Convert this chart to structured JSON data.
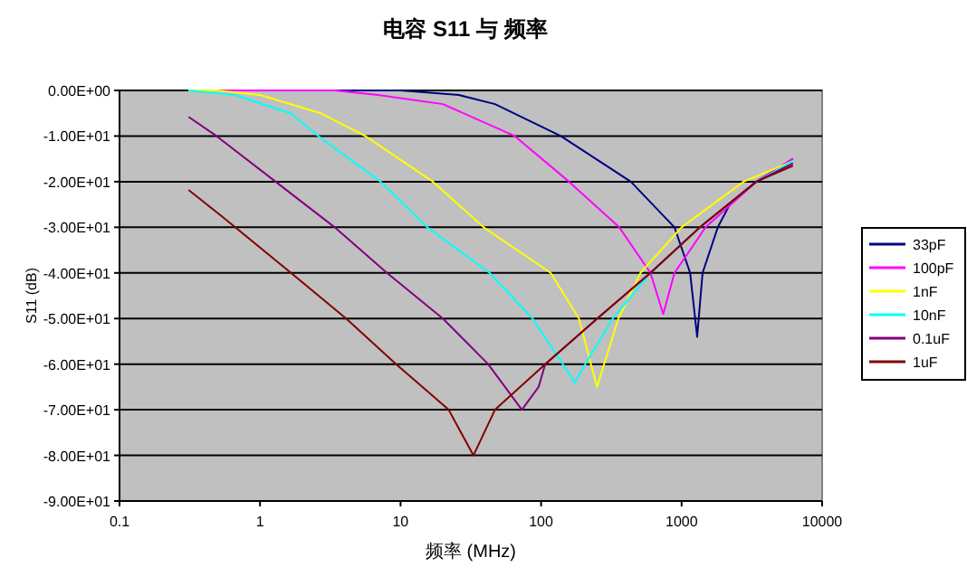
{
  "chart_data": {
    "type": "line",
    "title": "电容 S11 与 频率",
    "xlabel": "频率 (MHz)",
    "ylabel": "S11 (dB)",
    "log": "x",
    "grid": "y",
    "legend": "right",
    "marker": "none",
    "line_style": "solid",
    "xlim": [
      0.1,
      10000
    ],
    "xticks": [
      0.1,
      1,
      10,
      100,
      1000,
      10000
    ],
    "ylim": [
      -90,
      0
    ],
    "yticks": [
      {
        "value": 0,
        "label": "0.00E+00"
      },
      {
        "value": -10,
        "label": "-1.00E+01"
      },
      {
        "value": -20,
        "label": "-2.00E+01"
      },
      {
        "value": -30,
        "label": "-3.00E+01"
      },
      {
        "value": -40,
        "label": "-4.00E+01"
      },
      {
        "value": -50,
        "label": "-5.00E+01"
      },
      {
        "value": -60,
        "label": "-6.00E+01"
      },
      {
        "value": -70,
        "label": "-7.00E+01"
      },
      {
        "value": -80,
        "label": "-8.00E+01"
      },
      {
        "value": -90,
        "label": "-9.00E+01"
      }
    ],
    "series": [
      {
        "name": "33pF",
        "color": "#000080",
        "x": [
          0.31,
          10,
          26,
          47,
          138,
          435,
          890,
          1150,
          1290,
          1410,
          1810,
          2200,
          3400,
          6200
        ],
        "values": [
          0,
          0,
          -1,
          -3,
          -10,
          -20,
          -30,
          -40,
          -54,
          -40,
          -30,
          -25,
          -20,
          -15
        ]
      },
      {
        "name": "100pF",
        "color": "#ff00ff",
        "x": [
          0.31,
          3.4,
          6.9,
          20,
          65,
          158,
          360,
          600,
          740,
          890,
          1480,
          3400,
          6200
        ],
        "values": [
          0,
          0,
          -1,
          -3,
          -10,
          -20,
          -30,
          -40,
          -49,
          -40,
          -30,
          -20,
          -15
        ]
      },
      {
        "name": "1nF",
        "color": "#ffff00",
        "x": [
          0.31,
          0.49,
          1,
          2.7,
          5.6,
          17,
          39,
          117,
          186,
          250,
          355,
          510,
          1000,
          2760,
          6200
        ],
        "values": [
          0,
          0,
          -1,
          -5,
          -10,
          -20,
          -30,
          -40,
          -50,
          -65,
          -50,
          -40,
          -30,
          -20,
          -15.5
        ]
      },
      {
        "name": "10nF",
        "color": "#00ffff",
        "x": [
          0.31,
          0.66,
          1.65,
          2.6,
          7.2,
          15.5,
          43,
          87,
          174,
          206,
          324,
          600,
          1350,
          3400,
          6200
        ],
        "values": [
          0,
          -1,
          -5,
          -10,
          -20,
          -30,
          -40,
          -50,
          -64,
          -60,
          -50,
          -40,
          -30,
          -20,
          -15.5
        ]
      },
      {
        "name": "0.1uF",
        "color": "#800080",
        "x": [
          0.31,
          0.49,
          1.29,
          3.4,
          8,
          20,
          42,
          73,
          96,
          107,
          251,
          600,
          1350,
          3400,
          6200
        ],
        "values": [
          -5.8,
          -10,
          -20,
          -30,
          -40,
          -50,
          -60,
          -70,
          -65,
          -60,
          -50,
          -40,
          -30,
          -20,
          -16
        ]
      },
      {
        "name": "1uF",
        "color": "#800000",
        "x": [
          0.31,
          0.54,
          1.66,
          4.1,
          9.3,
          22,
          33,
          47,
          107,
          251,
          600,
          1350,
          3400,
          6200
        ],
        "values": [
          -21.8,
          -27.7,
          -40,
          -50,
          -60,
          -70,
          -80,
          -70,
          -60,
          -50,
          -40,
          -30,
          -20,
          -16.5
        ]
      }
    ]
  }
}
